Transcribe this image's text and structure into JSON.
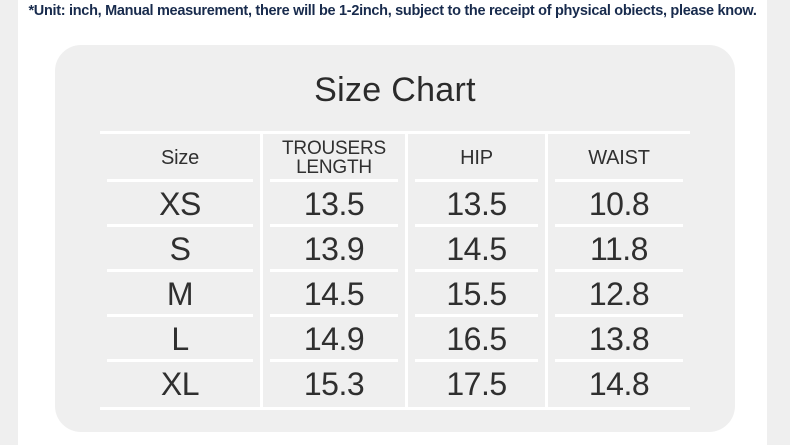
{
  "disclaimer": "*Unit: inch, Manual measurement, there will be 1-2inch, subject to the receipt of physical obiects, please know.",
  "chart_data": {
    "type": "table",
    "title": "Size Chart",
    "unit": "inch",
    "columns": [
      "Size",
      "TROUSERS LENGTH",
      "HIP",
      "WAIST"
    ],
    "rows": [
      [
        "XS",
        "13.5",
        "13.5",
        "10.8"
      ],
      [
        "S",
        "13.9",
        "14.5",
        "11.8"
      ],
      [
        "M",
        "14.5",
        "15.5",
        "12.8"
      ],
      [
        "L",
        "14.9",
        "16.5",
        "13.8"
      ],
      [
        "XL",
        "15.3",
        "17.5",
        "14.8"
      ]
    ]
  },
  "colors": {
    "page_bg": "#ffffff",
    "card_bg": "#efefef",
    "gutter_bg": "#efefef",
    "table_line": "#ffffff",
    "text": "#2f2f2f",
    "disclaimer_text": "#182b4d"
  }
}
